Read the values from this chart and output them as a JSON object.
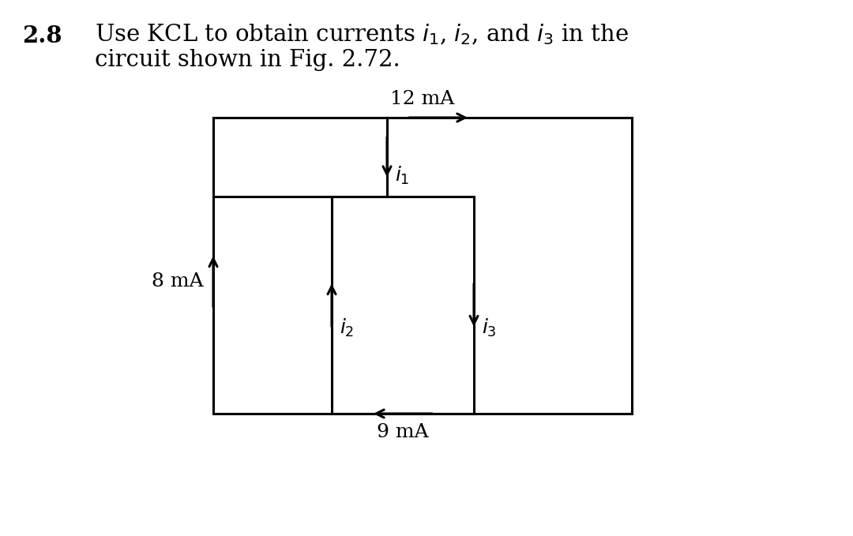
{
  "bg_color": "#ffffff",
  "problem_number": "2.8",
  "line1": "Use KCL to obtain currents $i_1$, $i_2$, and $i_3$ in the",
  "line2": "circuit shown in Fig. 2.72.",
  "label_12mA": "12 mA",
  "label_8mA": "8 mA",
  "label_9mA": "9 mA",
  "label_i1": "$i_1$",
  "label_i2": "$i_2$",
  "label_i3": "$i_3$",
  "arrow_color": "#000000",
  "line_color": "#000000",
  "line_width": 2.2,
  "text_color": "#000000",
  "fs_problem": 21,
  "fs_circuit": 18
}
